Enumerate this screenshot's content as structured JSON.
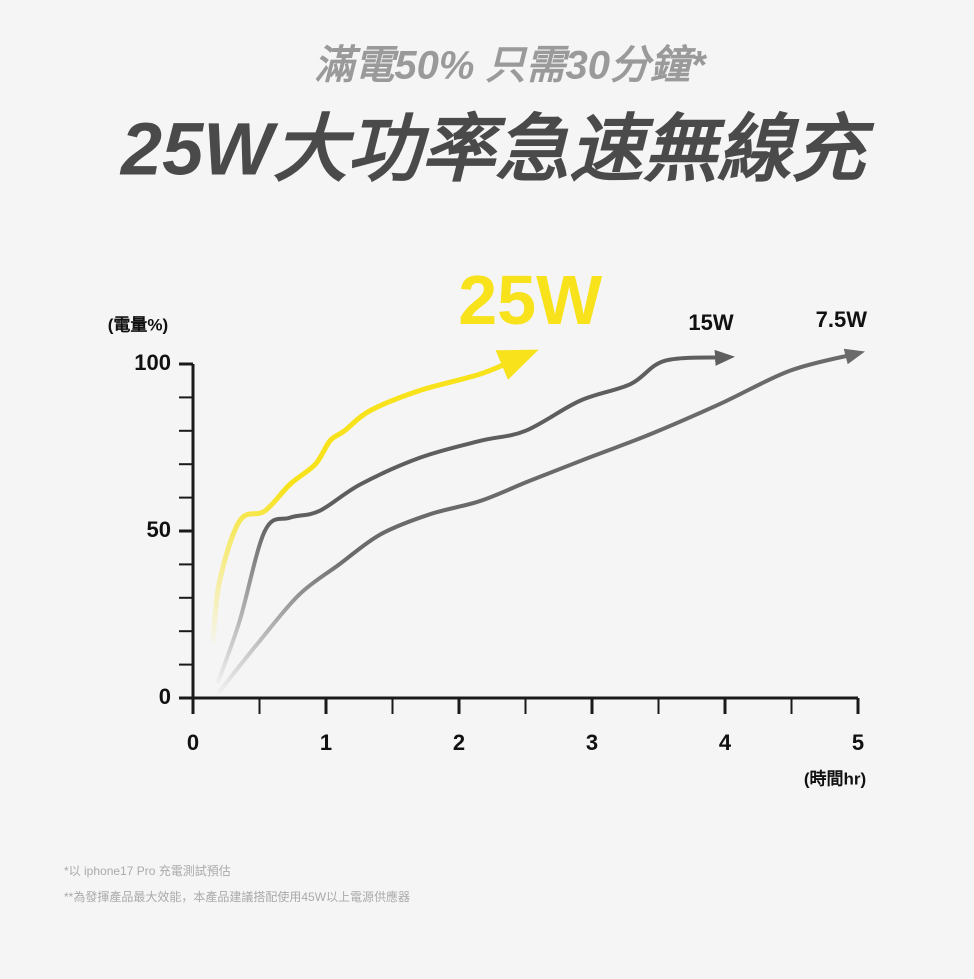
{
  "chart_data": {
    "type": "line",
    "subtitle": "滿電50% 只需30分鐘*",
    "title": "25W大功率急速無線充",
    "y_label": "(電量%)",
    "x_label": "(時間hr)",
    "xlim": [
      0,
      5
    ],
    "ylim": [
      0,
      100
    ],
    "xticks": [
      0,
      1,
      2,
      3,
      4,
      5
    ],
    "xminorticks": [
      0.5,
      1.5,
      2.5,
      3.5,
      4.5
    ],
    "yticks": [
      0,
      50,
      100
    ],
    "yminorticks": [
      10,
      20,
      30,
      40,
      60,
      70,
      80,
      90
    ],
    "series": [
      {
        "name": "25W",
        "color": "#f7e21b",
        "x": [
          0.15,
          0.2,
          0.35,
          0.54,
          0.73,
          0.92,
          1.03,
          1.14,
          1.33,
          1.7,
          2.16,
          2.46
        ],
        "values": [
          17,
          35,
          53,
          56,
          64,
          70,
          77,
          80,
          86,
          92,
          97,
          102
        ]
      },
      {
        "name": "15W",
        "color": "#5e5e5e",
        "x": [
          0.19,
          0.35,
          0.54,
          0.73,
          0.95,
          1.26,
          1.71,
          2.16,
          2.5,
          2.91,
          3.29,
          3.55,
          4.0
        ],
        "values": [
          5,
          23,
          50,
          54,
          56,
          64,
          72,
          77,
          80,
          89,
          94,
          101,
          102
        ]
      },
      {
        "name": "7.5W",
        "color": "#6a6a6a",
        "x": [
          0.2,
          0.5,
          0.8,
          1.1,
          1.41,
          1.78,
          2.16,
          2.53,
          2.98,
          3.44,
          3.96,
          4.49,
          4.98
        ],
        "values": [
          2,
          17,
          31,
          40,
          49,
          55,
          59,
          65,
          72,
          79,
          88,
          98,
          103
        ]
      }
    ],
    "footnotes": [
      "*以 iphone17 Pro 充電測試預估",
      "**為發揮產品最大效能，本產品建議搭配使用45W以上電源供應器"
    ]
  }
}
